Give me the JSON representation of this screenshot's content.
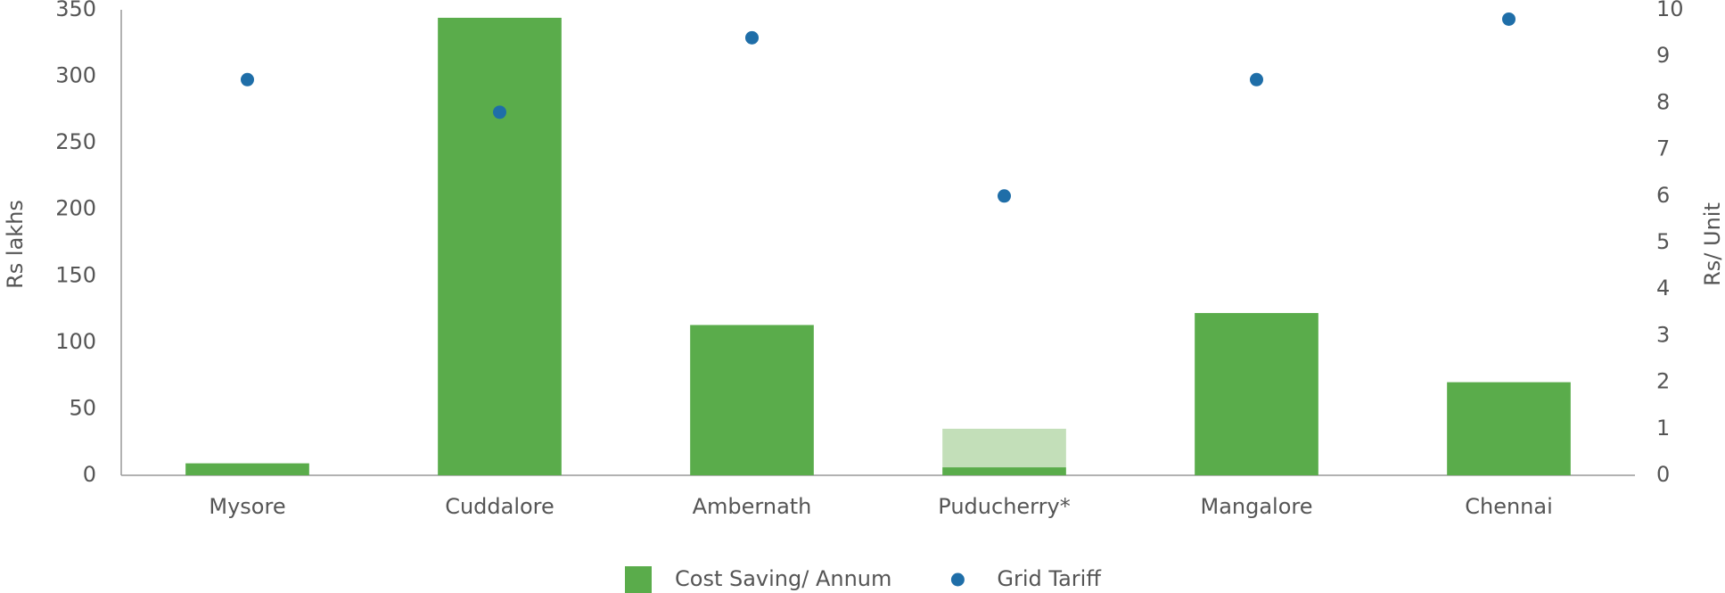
{
  "chart_data": {
    "type": "bar",
    "categories": [
      "Mysore",
      "Cuddalore",
      "Ambernath",
      "Puducherry*",
      "Mangalore",
      "Chennai"
    ],
    "series": [
      {
        "name": "Cost Saving/ Annum",
        "color": "#5aac4b",
        "values": [
          9,
          344,
          113,
          6,
          122,
          70
        ]
      },
      {
        "color": "#c3dfb9",
        "values": [
          null,
          null,
          null,
          29,
          null,
          null
        ]
      },
      {
        "name": "Grid Tariff",
        "type": "scatter",
        "axis": "y2",
        "color": "#1f6ea8",
        "values": [
          8.5,
          7.8,
          9.4,
          6.0,
          8.5,
          9.8
        ]
      }
    ],
    "ylabel": "Rs lakhs",
    "y2label": "Rs/ Unit",
    "ylim": [
      0,
      350
    ],
    "yticks": [
      0,
      50,
      100,
      150,
      200,
      250,
      300,
      350
    ],
    "y2lim": [
      0,
      10
    ],
    "y2ticks": [
      0,
      1,
      2,
      3,
      4,
      5,
      6,
      7,
      8,
      9,
      10
    ],
    "legend": "bottom"
  }
}
